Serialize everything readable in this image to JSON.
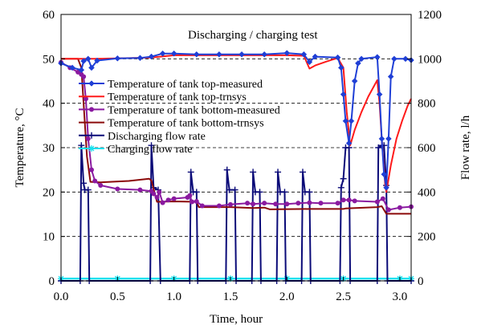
{
  "chart_data": {
    "type": "line",
    "title": "",
    "annotation": "Discharging / charging test",
    "xlabel": "Time, hour",
    "ylabel": "Temperature, °C",
    "y2label": "Flow rate, l/h",
    "xlim": [
      0,
      3.1
    ],
    "ylim": [
      0,
      60
    ],
    "y2lim": [
      0,
      1200
    ],
    "xticks": [
      "0.0",
      "0.5",
      "1.0",
      "1.5",
      "2.0",
      "2.5",
      "3.0"
    ],
    "xtick_values": [
      0,
      0.5,
      1.0,
      1.5,
      2.0,
      2.5,
      3.0
    ],
    "yticks": [
      "0",
      "10",
      "20",
      "30",
      "40",
      "50",
      "60"
    ],
    "ytick_values": [
      0,
      10,
      20,
      30,
      40,
      50,
      60
    ],
    "y2ticks": [
      "0",
      "200",
      "400",
      "600",
      "800",
      "1000",
      "1200"
    ],
    "y2tick_values": [
      0,
      200,
      400,
      600,
      800,
      1000,
      1200
    ],
    "grid": "horizontal-dashed",
    "legend_position": "upper-left",
    "series": [
      {
        "name": "Temperature of tank top-measured",
        "axis": "left",
        "color": "#1f3fd6",
        "marker": "diamond",
        "points": [
          [
            0,
            49
          ],
          [
            0.1,
            48
          ],
          [
            0.18,
            47.5
          ],
          [
            0.2,
            49.5
          ],
          [
            0.24,
            50
          ],
          [
            0.27,
            48
          ],
          [
            0.32,
            49.6
          ],
          [
            0.5,
            50.1
          ],
          [
            0.7,
            50.2
          ],
          [
            0.8,
            50.5
          ],
          [
            0.9,
            51.2
          ],
          [
            1.0,
            51.2
          ],
          [
            1.2,
            51
          ],
          [
            1.4,
            51
          ],
          [
            1.6,
            51
          ],
          [
            1.8,
            51
          ],
          [
            2.0,
            51.3
          ],
          [
            2.15,
            51
          ],
          [
            2.2,
            49.3
          ],
          [
            2.25,
            50.5
          ],
          [
            2.45,
            50.3
          ],
          [
            2.48,
            48
          ],
          [
            2.5,
            42
          ],
          [
            2.52,
            36
          ],
          [
            2.55,
            31
          ],
          [
            2.57,
            36
          ],
          [
            2.6,
            45
          ],
          [
            2.63,
            49
          ],
          [
            2.66,
            50
          ],
          [
            2.8,
            50.4
          ],
          [
            2.82,
            42
          ],
          [
            2.84,
            32
          ],
          [
            2.86,
            24
          ],
          [
            2.88,
            21
          ],
          [
            2.9,
            32
          ],
          [
            2.92,
            46
          ],
          [
            2.95,
            50
          ],
          [
            3.05,
            50
          ],
          [
            3.1,
            49.7
          ]
        ]
      },
      {
        "name": "Temperature of tank top-trnsys",
        "axis": "left",
        "color": "#ff1a1a",
        "marker": "none",
        "points": [
          [
            0,
            50
          ],
          [
            0.3,
            50
          ],
          [
            0.8,
            50.3
          ],
          [
            1.0,
            50.8
          ],
          [
            1.5,
            50.8
          ],
          [
            2.0,
            50.8
          ],
          [
            2.15,
            50.7
          ],
          [
            2.2,
            47.8
          ],
          [
            2.25,
            48.5
          ],
          [
            2.35,
            49.4
          ],
          [
            2.45,
            50.2
          ],
          [
            2.5,
            48
          ],
          [
            2.53,
            38
          ],
          [
            2.56,
            30.5
          ],
          [
            2.6,
            34
          ],
          [
            2.66,
            38
          ],
          [
            2.72,
            41.5
          ],
          [
            2.8,
            45.2
          ],
          [
            2.82,
            40
          ],
          [
            2.84,
            32
          ],
          [
            2.87,
            21.5
          ],
          [
            2.88,
            20
          ],
          [
            2.92,
            26
          ],
          [
            2.97,
            32
          ],
          [
            3.02,
            36
          ],
          [
            3.07,
            39.5
          ],
          [
            3.1,
            41
          ]
        ]
      },
      {
        "name": "Temperature of tank bottom-measured",
        "axis": "left",
        "color": "#8a1aa0",
        "marker": "circle",
        "points": [
          [
            0,
            49.2
          ],
          [
            0.08,
            48
          ],
          [
            0.15,
            47
          ],
          [
            0.18,
            46.5
          ],
          [
            0.2,
            46
          ],
          [
            0.22,
            41
          ],
          [
            0.24,
            32
          ],
          [
            0.27,
            25
          ],
          [
            0.3,
            22.5
          ],
          [
            0.35,
            21.5
          ],
          [
            0.5,
            20.7
          ],
          [
            0.7,
            20.5
          ],
          [
            0.8,
            20.2
          ],
          [
            0.82,
            19.6
          ],
          [
            0.85,
            18.8
          ],
          [
            0.87,
            20
          ],
          [
            0.9,
            17.6
          ],
          [
            0.95,
            18.2
          ],
          [
            1.0,
            18.5
          ],
          [
            1.12,
            18.8
          ],
          [
            1.14,
            19.2
          ],
          [
            1.16,
            17.8
          ],
          [
            1.2,
            17.9
          ],
          [
            1.25,
            16.9
          ],
          [
            1.4,
            16.9
          ],
          [
            1.5,
            17.2
          ],
          [
            1.65,
            17.5
          ],
          [
            1.7,
            17.3
          ],
          [
            1.8,
            17.5
          ],
          [
            1.9,
            17.3
          ],
          [
            2.0,
            17.3
          ],
          [
            2.1,
            17.5
          ],
          [
            2.2,
            17.6
          ],
          [
            2.3,
            17.5
          ],
          [
            2.45,
            17.5
          ],
          [
            2.5,
            18.2
          ],
          [
            2.55,
            18.2
          ],
          [
            2.6,
            18
          ],
          [
            2.8,
            17.8
          ],
          [
            2.85,
            18.5
          ],
          [
            2.9,
            16
          ],
          [
            3.0,
            16.5
          ],
          [
            3.1,
            16.7
          ]
        ]
      },
      {
        "name": "Temperature of tank bottom-trnsys",
        "axis": "left",
        "color": "#8b0a0a",
        "marker": "none",
        "points": [
          [
            0,
            50
          ],
          [
            0.15,
            50
          ],
          [
            0.18,
            48
          ],
          [
            0.2,
            40
          ],
          [
            0.23,
            28
          ],
          [
            0.26,
            22.3
          ],
          [
            0.35,
            22.2
          ],
          [
            0.6,
            22.5
          ],
          [
            0.78,
            23
          ],
          [
            0.8,
            22.6
          ],
          [
            0.85,
            17.8
          ],
          [
            1.0,
            17.9
          ],
          [
            1.2,
            17.8
          ],
          [
            1.22,
            16.6
          ],
          [
            1.5,
            16.6
          ],
          [
            1.7,
            16.4
          ],
          [
            1.8,
            16.5
          ],
          [
            1.85,
            16.1
          ],
          [
            2.2,
            16.2
          ],
          [
            2.5,
            16.2
          ],
          [
            2.52,
            16.3
          ],
          [
            2.8,
            16.6
          ],
          [
            2.84,
            16.8
          ],
          [
            2.88,
            15.1
          ],
          [
            3.1,
            15.1
          ]
        ]
      },
      {
        "name": "Discharging flow rate",
        "axis": "right",
        "color": "#0a0a78",
        "marker": "plus",
        "points": [
          [
            0,
            0
          ],
          [
            0.17,
            0
          ],
          [
            0.18,
            610
          ],
          [
            0.2,
            440
          ],
          [
            0.21,
            410
          ],
          [
            0.24,
            410
          ],
          [
            0.25,
            0
          ],
          [
            0.79,
            0
          ],
          [
            0.8,
            610
          ],
          [
            0.82,
            420
          ],
          [
            0.86,
            410
          ],
          [
            0.88,
            0
          ],
          [
            1.14,
            0
          ],
          [
            1.15,
            490
          ],
          [
            1.17,
            400
          ],
          [
            1.2,
            400
          ],
          [
            1.21,
            0
          ],
          [
            1.46,
            0
          ],
          [
            1.47,
            500
          ],
          [
            1.49,
            410
          ],
          [
            1.54,
            410
          ],
          [
            1.55,
            0
          ],
          [
            1.69,
            0
          ],
          [
            1.7,
            490
          ],
          [
            1.72,
            400
          ],
          [
            1.76,
            400
          ],
          [
            1.77,
            0
          ],
          [
            1.91,
            0
          ],
          [
            1.92,
            490
          ],
          [
            1.94,
            400
          ],
          [
            1.98,
            400
          ],
          [
            1.99,
            0
          ],
          [
            2.13,
            0
          ],
          [
            2.14,
            490
          ],
          [
            2.16,
            400
          ],
          [
            2.2,
            400
          ],
          [
            2.21,
            0
          ],
          [
            2.47,
            0
          ],
          [
            2.48,
            420
          ],
          [
            2.5,
            460
          ],
          [
            2.52,
            600
          ],
          [
            2.55,
            600
          ],
          [
            2.56,
            0
          ],
          [
            2.8,
            0
          ],
          [
            2.81,
            600
          ],
          [
            2.84,
            610
          ],
          [
            2.86,
            610
          ],
          [
            2.88,
            430
          ],
          [
            2.89,
            0
          ],
          [
            3.1,
            0
          ]
        ]
      },
      {
        "name": "Charging flow rate",
        "axis": "right",
        "color": "#19e0ee",
        "marker": "asterisk",
        "points": [
          [
            0,
            10
          ],
          [
            0.5,
            10
          ],
          [
            1.0,
            10
          ],
          [
            1.5,
            10
          ],
          [
            2.0,
            10
          ],
          [
            2.5,
            10
          ],
          [
            3.0,
            10
          ],
          [
            3.1,
            10
          ]
        ]
      }
    ]
  }
}
